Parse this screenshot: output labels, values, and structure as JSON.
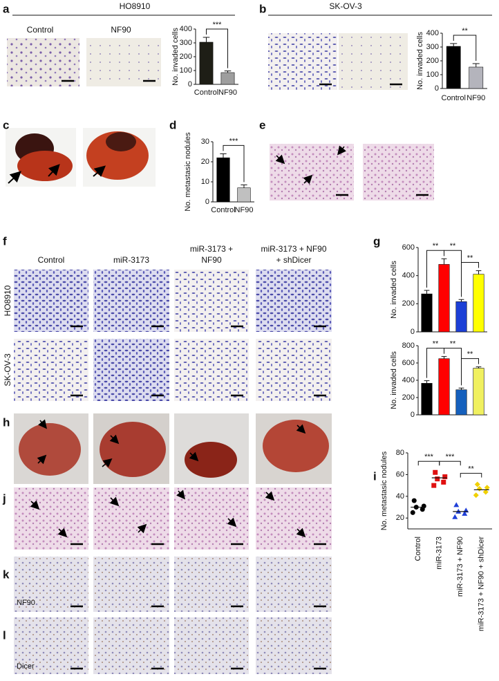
{
  "figure": {
    "panel_letters": [
      "a",
      "b",
      "c",
      "d",
      "e",
      "f",
      "g",
      "h",
      "i",
      "j",
      "k",
      "l"
    ],
    "a_title": "HO8910",
    "a_image_labels": [
      "Control",
      "NF90"
    ],
    "b_title": "SK-OV-3",
    "f_columns": [
      [
        "Control"
      ],
      [
        "miR-3173"
      ],
      [
        "miR-3173 +",
        "NF90"
      ],
      [
        "miR-3173 + NF90",
        "+ shDicer"
      ]
    ],
    "f_rows": [
      "HO8910",
      "SK-OV-3"
    ],
    "k_stain": "NF90",
    "l_stain": "Dicer"
  },
  "chart_data": [
    {
      "type": "bar",
      "categories": [
        "Control",
        "NF90"
      ],
      "values": [
        305,
        85
      ],
      "errors": [
        35,
        12
      ],
      "colors": [
        "#1e1e16",
        "#9e9e9e"
      ],
      "ylabel": "No. invaded cells",
      "ylim": [
        0,
        400
      ],
      "yticks": [
        0,
        100,
        200,
        300,
        400
      ],
      "significance": [
        "***"
      ]
    },
    {
      "type": "bar",
      "categories": [
        "Control",
        "NF90"
      ],
      "values": [
        305,
        155
      ],
      "errors": [
        20,
        25
      ],
      "colors": [
        "#000000",
        "#b4b4bc"
      ],
      "ylabel": "No. invaded cells",
      "ylim": [
        0,
        400
      ],
      "yticks": [
        0,
        100,
        200,
        300,
        400
      ],
      "significance": [
        "**"
      ]
    },
    {
      "type": "bar",
      "categories": [
        "Control",
        "NF90"
      ],
      "values": [
        22,
        7
      ],
      "errors": [
        2,
        1.5
      ],
      "colors": [
        "#000000",
        "#c0c0c0"
      ],
      "ylabel": "No. metastasic nodules",
      "ylim": [
        0,
        30
      ],
      "yticks": [
        0,
        10,
        20,
        30
      ],
      "significance": [
        "***"
      ]
    },
    {
      "type": "bar",
      "categories": [
        null,
        null,
        null,
        null
      ],
      "values": [
        270,
        480,
        215,
        410
      ],
      "errors": [
        25,
        40,
        15,
        25
      ],
      "colors": [
        "#000000",
        "#ff0000",
        "#1c3fd6",
        "#ffff00"
      ],
      "ylabel": "No. invaded cells",
      "ylim": [
        0,
        600
      ],
      "yticks": [
        0,
        200,
        400,
        600
      ],
      "significance": [
        "**",
        "**",
        "**"
      ]
    },
    {
      "type": "bar",
      "categories": [
        null,
        null,
        null,
        null
      ],
      "values": [
        365,
        650,
        290,
        540
      ],
      "errors": [
        30,
        25,
        20,
        15
      ],
      "colors": [
        "#000000",
        "#ff0000",
        "#1560bd",
        "#f0f060"
      ],
      "ylabel": "No. invaded cells",
      "ylim": [
        0,
        800
      ],
      "yticks": [
        0,
        200,
        400,
        600,
        800
      ],
      "significance": [
        "**",
        "**",
        "**"
      ]
    },
    {
      "type": "dot",
      "categories": [
        "Control",
        "miR-3173",
        "miR-3173 + NF90",
        "miR-3173 + NF90 + shDicer"
      ],
      "points": [
        [
          25,
          28,
          30,
          31,
          36
        ],
        [
          50,
          53,
          56,
          58,
          62
        ],
        [
          21,
          24,
          26,
          27,
          32
        ],
        [
          41,
          44,
          47,
          48,
          51
        ]
      ],
      "means": [
        30,
        57,
        26,
        46
      ],
      "colors": [
        "#000000",
        "#e01010",
        "#1f3fd8",
        "#f0d000"
      ],
      "markers": [
        "circle",
        "square",
        "triangle",
        "diamond"
      ],
      "ylabel": "No. metastasic nodules",
      "ylim": [
        10,
        80
      ],
      "yticks": [
        20,
        40,
        60,
        80
      ],
      "significance": [
        "***",
        "***",
        "**"
      ]
    }
  ]
}
